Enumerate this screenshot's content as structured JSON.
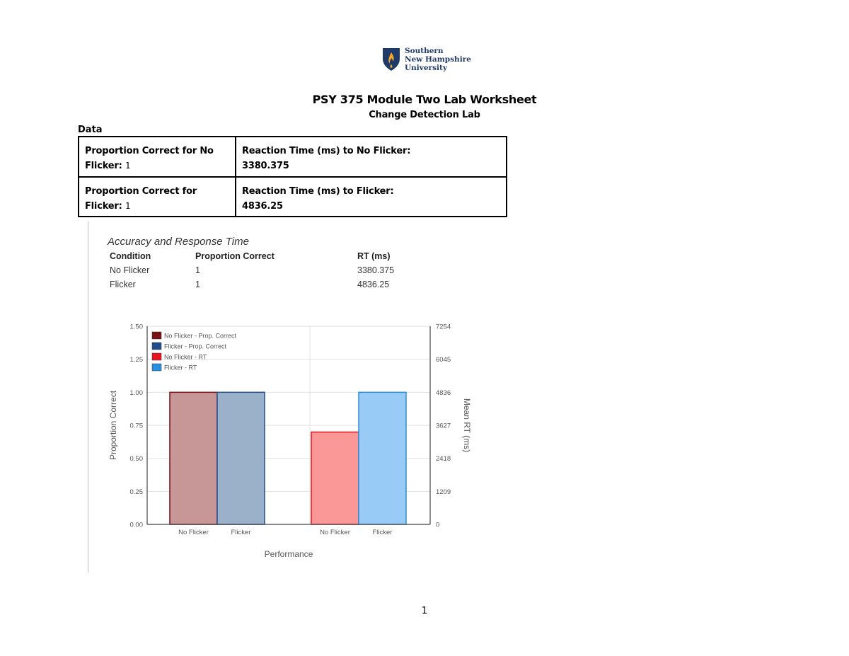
{
  "logo": {
    "line1": "Southern",
    "line2": "New Hampshire",
    "line3": "University"
  },
  "title": "PSY 375 Module Two Lab Worksheet",
  "subtitle": "Change Detection Lab",
  "section_label": "Data",
  "data_table": {
    "rows": [
      {
        "label_a": "Proportion Correct for No",
        "label_b": "Flicker:",
        "value": "1",
        "rt_label": "Reaction Time (ms) to No Flicker:",
        "rt_value": "3380.375"
      },
      {
        "label_a": "Proportion Correct for",
        "label_b": "Flicker:",
        "value": "1",
        "rt_label": "Reaction Time (ms) to Flicker:",
        "rt_value": "4836.25"
      }
    ]
  },
  "results": {
    "title": "Accuracy and Response Time",
    "headers": [
      "Condition",
      "Proportion Correct",
      "RT (ms)"
    ],
    "rows": [
      [
        "No Flicker",
        "1",
        "3380.375"
      ],
      [
        "Flicker",
        "1",
        "4836.25"
      ]
    ]
  },
  "chart_data": {
    "type": "bar",
    "xlabel": "Performance",
    "ylabel": "Proportion Correct",
    "y2label": "Mean RT (ms)",
    "ylim": [
      0,
      1.5
    ],
    "y2lim": [
      0,
      7254
    ],
    "yticks": [
      "0.00",
      "0.25",
      "0.50",
      "0.75",
      "1.00",
      "1.25",
      "1.50"
    ],
    "y2ticks": [
      "0",
      "1209",
      "2418",
      "3627",
      "4836",
      "6045",
      "7254"
    ],
    "groups": [
      {
        "categories": [
          "No Flicker",
          "Flicker"
        ]
      },
      {
        "categories": [
          "No Flicker",
          "Flicker"
        ]
      }
    ],
    "series": [
      {
        "name": "No Flicker - Prop. Correct",
        "group": 0,
        "axis": "left",
        "value": 1,
        "fill": "#c79696",
        "stroke": "#7a0f14",
        "legend": "#7a0f14"
      },
      {
        "name": "Flicker - Prop. Correct",
        "group": 0,
        "axis": "left",
        "value": 1,
        "fill": "#9bb1c9",
        "stroke": "#1f4f8a",
        "legend": "#1f4f8a"
      },
      {
        "name": "No Flicker - RT",
        "group": 1,
        "axis": "right",
        "value": 3380.375,
        "fill": "#fa9898",
        "stroke": "#e8141e",
        "legend": "#e8141e"
      },
      {
        "name": "Flicker - RT",
        "group": 1,
        "axis": "right",
        "value": 4836.25,
        "fill": "#99cbf7",
        "stroke": "#2b8fe0",
        "legend": "#2b8fe0"
      }
    ],
    "grid": true,
    "legend_position": "top-left"
  },
  "page_number": "1"
}
